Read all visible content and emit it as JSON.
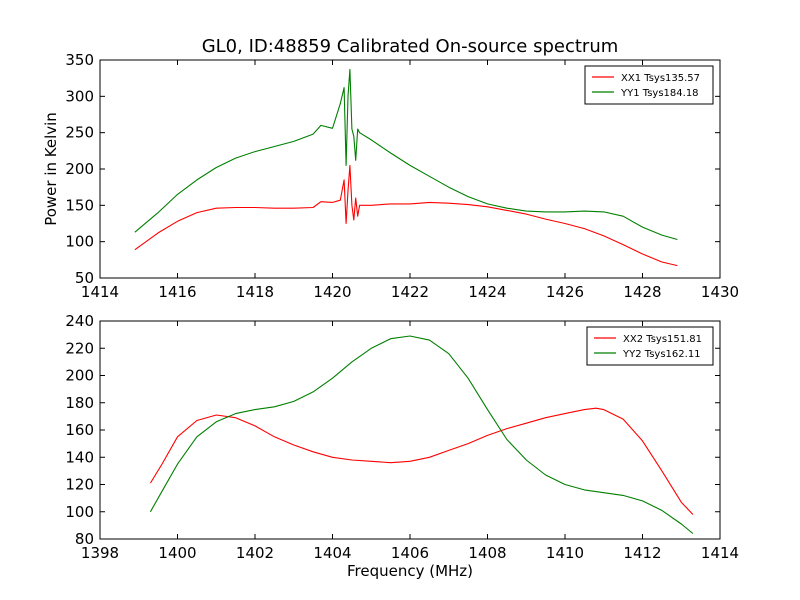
{
  "figure_title": "GL0, ID:48859 Calibrated On-source spectrum",
  "colors": {
    "xx": "#ff0000",
    "yy": "#007f00"
  },
  "chart_data": [
    {
      "type": "line",
      "xlim": [
        1414,
        1430
      ],
      "ylim": [
        50,
        350
      ],
      "xticks": [
        1414,
        1416,
        1418,
        1420,
        1422,
        1424,
        1426,
        1428,
        1430
      ],
      "yticks": [
        50,
        100,
        150,
        200,
        250,
        300,
        350
      ],
      "xlabel": "",
      "ylabel": "Power in Kelvin",
      "grid": false,
      "legend_position": "top-right",
      "series": [
        {
          "name": "XX1 Tsys135.57",
          "color": "#ff0000",
          "x": [
            1414.9,
            1415.5,
            1416.0,
            1416.5,
            1417.0,
            1417.5,
            1418.0,
            1418.5,
            1419.0,
            1419.5,
            1419.7,
            1420.0,
            1420.2,
            1420.3,
            1420.35,
            1420.4,
            1420.45,
            1420.5,
            1420.55,
            1420.6,
            1420.65,
            1420.7,
            1421.0,
            1421.5,
            1422.0,
            1422.5,
            1423.0,
            1423.5,
            1424.0,
            1424.5,
            1425.0,
            1425.5,
            1426.0,
            1426.5,
            1427.0,
            1427.5,
            1428.0,
            1428.5,
            1428.9
          ],
          "values": [
            89,
            112,
            128,
            140,
            146,
            147,
            147,
            146,
            146,
            147,
            155,
            154,
            157,
            185,
            125,
            170,
            205,
            150,
            130,
            160,
            135,
            150,
            150,
            152,
            152,
            154,
            153,
            151,
            148,
            143,
            138,
            131,
            125,
            118,
            108,
            96,
            83,
            72,
            67
          ]
        },
        {
          "name": "YY1 Tsys184.18",
          "color": "#007f00",
          "x": [
            1414.9,
            1415.5,
            1416.0,
            1416.5,
            1417.0,
            1417.5,
            1418.0,
            1418.5,
            1419.0,
            1419.5,
            1419.7,
            1420.0,
            1420.2,
            1420.3,
            1420.35,
            1420.4,
            1420.45,
            1420.5,
            1420.55,
            1420.6,
            1420.65,
            1420.7,
            1421.0,
            1421.5,
            1422.0,
            1422.5,
            1423.0,
            1423.5,
            1424.0,
            1424.5,
            1425.0,
            1425.5,
            1426.0,
            1426.5,
            1427.0,
            1427.5,
            1428.0,
            1428.5,
            1428.9
          ],
          "values": [
            113,
            140,
            165,
            185,
            202,
            215,
            224,
            231,
            238,
            248,
            260,
            256,
            290,
            312,
            205,
            300,
            337,
            255,
            245,
            212,
            255,
            250,
            240,
            222,
            205,
            190,
            175,
            162,
            152,
            146,
            142,
            141,
            141,
            142,
            141,
            135,
            120,
            109,
            103
          ]
        }
      ]
    },
    {
      "type": "line",
      "xlim": [
        1398,
        1414
      ],
      "ylim": [
        80,
        240
      ],
      "xticks": [
        1398,
        1400,
        1402,
        1404,
        1406,
        1408,
        1410,
        1412,
        1414
      ],
      "yticks": [
        80,
        100,
        120,
        140,
        160,
        180,
        200,
        220,
        240
      ],
      "xlabel": "Frequency (MHz)",
      "ylabel": "",
      "grid": false,
      "legend_position": "top-right",
      "series": [
        {
          "name": "XX2 Tsys151.81",
          "color": "#ff0000",
          "x": [
            1399.3,
            1399.6,
            1400.0,
            1400.5,
            1401.0,
            1401.5,
            1402.0,
            1402.5,
            1403.0,
            1403.5,
            1404.0,
            1404.5,
            1405.0,
            1405.5,
            1406.0,
            1406.5,
            1407.0,
            1407.5,
            1408.0,
            1408.5,
            1409.0,
            1409.5,
            1410.0,
            1410.5,
            1410.8,
            1411.0,
            1411.5,
            1412.0,
            1412.5,
            1413.0,
            1413.3
          ],
          "values": [
            121,
            135,
            155,
            167,
            171,
            169,
            163,
            155,
            149,
            144,
            140,
            138,
            137,
            136,
            137,
            140,
            145,
            150,
            156,
            161,
            165,
            169,
            172,
            175,
            176,
            175,
            168,
            152,
            130,
            107,
            98
          ]
        },
        {
          "name": "YY2 Tsys162.11",
          "color": "#007f00",
          "x": [
            1399.3,
            1399.6,
            1400.0,
            1400.5,
            1401.0,
            1401.5,
            1402.0,
            1402.5,
            1403.0,
            1403.5,
            1404.0,
            1404.5,
            1405.0,
            1405.5,
            1406.0,
            1406.5,
            1407.0,
            1407.5,
            1408.0,
            1408.5,
            1409.0,
            1409.5,
            1410.0,
            1410.5,
            1411.0,
            1411.5,
            1412.0,
            1412.5,
            1413.0,
            1413.3
          ],
          "values": [
            100,
            115,
            135,
            155,
            166,
            172,
            175,
            177,
            181,
            188,
            198,
            210,
            220,
            227,
            229,
            226,
            216,
            198,
            175,
            153,
            138,
            127,
            120,
            116,
            114,
            112,
            108,
            101,
            91,
            84
          ]
        }
      ]
    }
  ]
}
